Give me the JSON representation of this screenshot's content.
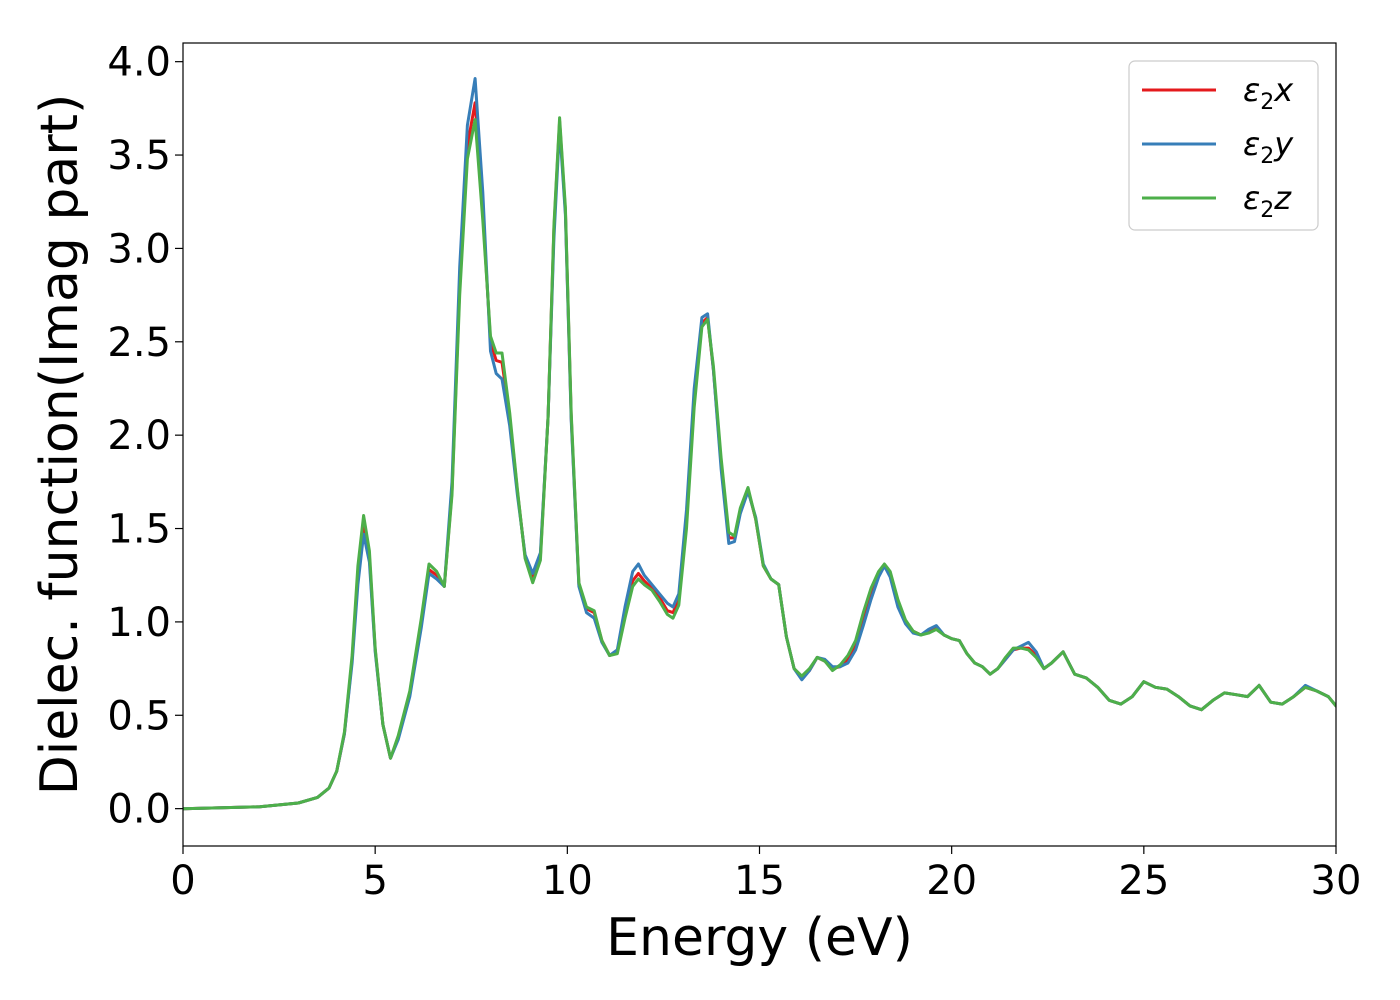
{
  "chart_data": {
    "type": "line",
    "xlabel": "Energy (eV)",
    "ylabel": "Dielec. function(Imag part)",
    "xlim": [
      0,
      30
    ],
    "ylim": [
      -0.2,
      4.1
    ],
    "xticks": [
      "0",
      "5",
      "10",
      "15",
      "20",
      "25",
      "30"
    ],
    "yticks": [
      "0.0",
      "0.5",
      "1.0",
      "1.5",
      "2.0",
      "2.5",
      "3.0",
      "3.5",
      "4.0"
    ],
    "grid": false,
    "legend_position": "top-right",
    "series": [
      {
        "name": "ε2x",
        "legend_base": "ε",
        "legend_sub": "2",
        "legend_var": "x",
        "color": "#e41a1c",
        "x": [
          0,
          1,
          2,
          3,
          3.5,
          3.8,
          4.0,
          4.2,
          4.4,
          4.55,
          4.7,
          4.85,
          5.0,
          5.2,
          5.4,
          5.6,
          5.9,
          6.2,
          6.4,
          6.6,
          6.8,
          7.0,
          7.2,
          7.4,
          7.6,
          7.8,
          8.0,
          8.15,
          8.3,
          8.5,
          8.7,
          8.9,
          9.1,
          9.3,
          9.5,
          9.65,
          9.8,
          9.95,
          10.1,
          10.3,
          10.5,
          10.7,
          10.9,
          11.1,
          11.3,
          11.5,
          11.7,
          11.85,
          12.0,
          12.2,
          12.4,
          12.6,
          12.75,
          12.9,
          13.1,
          13.3,
          13.5,
          13.65,
          13.8,
          14.0,
          14.2,
          14.35,
          14.5,
          14.7,
          14.9,
          15.1,
          15.3,
          15.5,
          15.7,
          15.9,
          16.1,
          16.3,
          16.5,
          16.7,
          16.9,
          17.1,
          17.3,
          17.5,
          17.7,
          17.9,
          18.1,
          18.25,
          18.4,
          18.6,
          18.8,
          19.0,
          19.2,
          19.4,
          19.6,
          19.8,
          20.0,
          20.2,
          20.4,
          20.6,
          20.8,
          21.0,
          21.2,
          21.4,
          21.6,
          21.8,
          22.0,
          22.2,
          22.4,
          22.6,
          22.9,
          23.2,
          23.5,
          23.8,
          24.1,
          24.4,
          24.7,
          25.0,
          25.3,
          25.6,
          25.9,
          26.2,
          26.5,
          26.8,
          27.1,
          27.4,
          27.7,
          28.0,
          28.3,
          28.6,
          28.9,
          29.2,
          29.5,
          29.8,
          30.0
        ],
        "y": [
          0.0,
          0.005,
          0.01,
          0.03,
          0.06,
          0.11,
          0.2,
          0.4,
          0.8,
          1.25,
          1.52,
          1.35,
          0.85,
          0.45,
          0.27,
          0.38,
          0.62,
          1.0,
          1.28,
          1.25,
          1.19,
          1.7,
          2.8,
          3.55,
          3.78,
          3.2,
          2.5,
          2.4,
          2.39,
          2.1,
          1.7,
          1.35,
          1.23,
          1.35,
          2.1,
          3.1,
          3.68,
          3.2,
          2.1,
          1.2,
          1.07,
          1.05,
          0.9,
          0.82,
          0.84,
          1.05,
          1.22,
          1.26,
          1.22,
          1.18,
          1.13,
          1.06,
          1.05,
          1.12,
          1.55,
          2.2,
          2.6,
          2.63,
          2.35,
          1.85,
          1.45,
          1.45,
          1.6,
          1.71,
          1.55,
          1.3,
          1.23,
          1.2,
          0.92,
          0.75,
          0.7,
          0.74,
          0.81,
          0.79,
          0.75,
          0.76,
          0.8,
          0.88,
          1.02,
          1.15,
          1.25,
          1.3,
          1.26,
          1.1,
          1.0,
          0.95,
          0.93,
          0.95,
          0.97,
          0.93,
          0.91,
          0.9,
          0.83,
          0.78,
          0.76,
          0.72,
          0.75,
          0.8,
          0.85,
          0.86,
          0.86,
          0.82,
          0.75,
          0.78,
          0.84,
          0.72,
          0.7,
          0.65,
          0.58,
          0.56,
          0.6,
          0.68,
          0.65,
          0.64,
          0.6,
          0.55,
          0.53,
          0.58,
          0.62,
          0.61,
          0.6,
          0.66,
          0.57,
          0.56,
          0.6,
          0.65,
          0.63,
          0.6,
          0.55
        ]
      },
      {
        "name": "ε2y",
        "legend_base": "ε",
        "legend_sub": "2",
        "legend_var": "y",
        "color": "#377eb8",
        "x": [
          0,
          1,
          2,
          3,
          3.5,
          3.8,
          4.0,
          4.2,
          4.4,
          4.55,
          4.7,
          4.85,
          5.0,
          5.2,
          5.4,
          5.6,
          5.9,
          6.2,
          6.4,
          6.6,
          6.8,
          7.0,
          7.2,
          7.4,
          7.6,
          7.8,
          8.0,
          8.15,
          8.3,
          8.5,
          8.7,
          8.9,
          9.1,
          9.3,
          9.5,
          9.65,
          9.8,
          9.95,
          10.1,
          10.3,
          10.5,
          10.7,
          10.9,
          11.1,
          11.3,
          11.5,
          11.7,
          11.85,
          12.0,
          12.2,
          12.4,
          12.6,
          12.75,
          12.9,
          13.1,
          13.3,
          13.5,
          13.65,
          13.8,
          14.0,
          14.2,
          14.35,
          14.5,
          14.7,
          14.9,
          15.1,
          15.3,
          15.5,
          15.7,
          15.9,
          16.1,
          16.3,
          16.5,
          16.7,
          16.9,
          17.1,
          17.3,
          17.5,
          17.7,
          17.9,
          18.1,
          18.25,
          18.4,
          18.6,
          18.8,
          19.0,
          19.2,
          19.4,
          19.6,
          19.8,
          20.0,
          20.2,
          20.4,
          20.6,
          20.8,
          21.0,
          21.2,
          21.4,
          21.6,
          21.8,
          22.0,
          22.2,
          22.4,
          22.6,
          22.9,
          23.2,
          23.5,
          23.8,
          24.1,
          24.4,
          24.7,
          25.0,
          25.3,
          25.6,
          25.9,
          26.2,
          26.5,
          26.8,
          27.1,
          27.4,
          27.7,
          28.0,
          28.3,
          28.6,
          28.9,
          29.2,
          29.5,
          29.8,
          30.0
        ],
        "y": [
          0.0,
          0.005,
          0.01,
          0.03,
          0.06,
          0.11,
          0.2,
          0.4,
          0.78,
          1.2,
          1.47,
          1.32,
          0.84,
          0.45,
          0.27,
          0.37,
          0.6,
          0.97,
          1.26,
          1.23,
          1.19,
          1.75,
          2.9,
          3.66,
          3.91,
          3.3,
          2.45,
          2.33,
          2.3,
          2.05,
          1.68,
          1.36,
          1.26,
          1.37,
          2.1,
          3.05,
          3.65,
          3.18,
          2.08,
          1.19,
          1.05,
          1.02,
          0.89,
          0.82,
          0.85,
          1.08,
          1.27,
          1.31,
          1.25,
          1.2,
          1.15,
          1.1,
          1.08,
          1.15,
          1.6,
          2.25,
          2.63,
          2.65,
          2.35,
          1.82,
          1.42,
          1.43,
          1.58,
          1.7,
          1.56,
          1.31,
          1.23,
          1.2,
          0.92,
          0.75,
          0.69,
          0.74,
          0.81,
          0.8,
          0.76,
          0.76,
          0.78,
          0.85,
          0.98,
          1.12,
          1.24,
          1.3,
          1.24,
          1.08,
          0.99,
          0.94,
          0.93,
          0.96,
          0.98,
          0.93,
          0.91,
          0.9,
          0.83,
          0.78,
          0.76,
          0.72,
          0.75,
          0.8,
          0.85,
          0.87,
          0.89,
          0.84,
          0.75,
          0.78,
          0.84,
          0.72,
          0.7,
          0.65,
          0.58,
          0.56,
          0.6,
          0.68,
          0.65,
          0.64,
          0.6,
          0.55,
          0.53,
          0.58,
          0.62,
          0.61,
          0.6,
          0.66,
          0.57,
          0.56,
          0.6,
          0.66,
          0.63,
          0.6,
          0.55
        ]
      },
      {
        "name": "ε2z",
        "legend_base": "ε",
        "legend_sub": "2",
        "legend_var": "z",
        "color": "#4daf4a",
        "x": [
          0,
          1,
          2,
          3,
          3.5,
          3.8,
          4.0,
          4.2,
          4.4,
          4.55,
          4.7,
          4.85,
          5.0,
          5.2,
          5.4,
          5.6,
          5.9,
          6.2,
          6.4,
          6.6,
          6.8,
          7.0,
          7.2,
          7.4,
          7.6,
          7.8,
          8.0,
          8.15,
          8.3,
          8.5,
          8.7,
          8.9,
          9.1,
          9.3,
          9.5,
          9.65,
          9.8,
          9.95,
          10.1,
          10.3,
          10.5,
          10.7,
          10.9,
          11.1,
          11.3,
          11.5,
          11.7,
          11.85,
          12.0,
          12.2,
          12.4,
          12.6,
          12.75,
          12.9,
          13.1,
          13.3,
          13.5,
          13.65,
          13.8,
          14.0,
          14.2,
          14.35,
          14.5,
          14.7,
          14.9,
          15.1,
          15.3,
          15.5,
          15.7,
          15.9,
          16.1,
          16.3,
          16.5,
          16.7,
          16.9,
          17.1,
          17.3,
          17.5,
          17.7,
          17.9,
          18.1,
          18.25,
          18.4,
          18.6,
          18.8,
          19.0,
          19.2,
          19.4,
          19.6,
          19.8,
          20.0,
          20.2,
          20.4,
          20.6,
          20.8,
          21.0,
          21.2,
          21.4,
          21.6,
          21.8,
          22.0,
          22.2,
          22.4,
          22.6,
          22.9,
          23.2,
          23.5,
          23.8,
          24.1,
          24.4,
          24.7,
          25.0,
          25.3,
          25.6,
          25.9,
          26.2,
          26.5,
          26.8,
          27.1,
          27.4,
          27.7,
          28.0,
          28.3,
          28.6,
          28.9,
          29.2,
          29.5,
          29.8,
          30.0
        ],
        "y": [
          0.0,
          0.005,
          0.01,
          0.03,
          0.06,
          0.11,
          0.2,
          0.41,
          0.82,
          1.3,
          1.57,
          1.38,
          0.86,
          0.45,
          0.27,
          0.39,
          0.63,
          1.02,
          1.31,
          1.27,
          1.19,
          1.68,
          2.75,
          3.48,
          3.69,
          3.15,
          2.53,
          2.44,
          2.44,
          2.12,
          1.71,
          1.34,
          1.21,
          1.33,
          2.1,
          3.12,
          3.7,
          3.22,
          2.12,
          1.21,
          1.08,
          1.06,
          0.9,
          0.82,
          0.83,
          1.02,
          1.19,
          1.23,
          1.2,
          1.17,
          1.11,
          1.04,
          1.02,
          1.09,
          1.5,
          2.15,
          2.58,
          2.62,
          2.37,
          1.88,
          1.48,
          1.46,
          1.61,
          1.72,
          1.55,
          1.3,
          1.23,
          1.2,
          0.92,
          0.75,
          0.71,
          0.75,
          0.81,
          0.79,
          0.74,
          0.77,
          0.82,
          0.9,
          1.05,
          1.18,
          1.27,
          1.31,
          1.27,
          1.12,
          1.01,
          0.95,
          0.93,
          0.94,
          0.96,
          0.93,
          0.91,
          0.9,
          0.83,
          0.78,
          0.76,
          0.72,
          0.75,
          0.81,
          0.86,
          0.86,
          0.85,
          0.81,
          0.75,
          0.78,
          0.84,
          0.72,
          0.7,
          0.65,
          0.58,
          0.56,
          0.6,
          0.68,
          0.65,
          0.64,
          0.6,
          0.55,
          0.53,
          0.58,
          0.62,
          0.61,
          0.6,
          0.66,
          0.57,
          0.56,
          0.6,
          0.65,
          0.63,
          0.6,
          0.55
        ]
      }
    ]
  }
}
